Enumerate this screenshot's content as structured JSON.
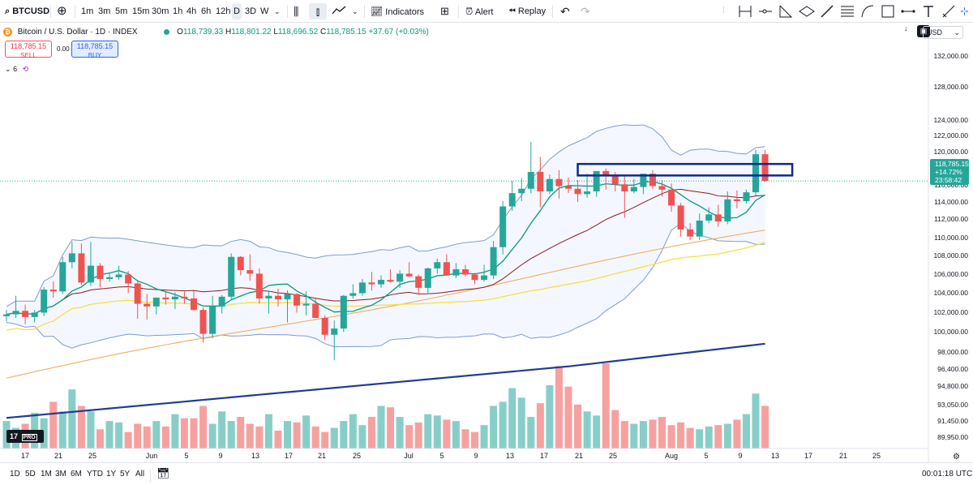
{
  "toolbar": {
    "symbol": "BTCUSD",
    "intervals": [
      "1m",
      "3m",
      "5m",
      "15m",
      "30m",
      "1h",
      "4h",
      "6h",
      "12h",
      "D",
      "3D",
      "W"
    ],
    "active_interval": "D",
    "indicators_label": "Indicators",
    "alert_label": "Alert",
    "replay_label": "Replay"
  },
  "legend": {
    "title": "Bitcoin / U.S. Dollar · 1D · INDEX",
    "o_label": "O",
    "o": "118,739.33",
    "h_label": "H",
    "h": "118,801.22",
    "l_label": "L",
    "l": "118,696.52",
    "c_label": "C",
    "c": "118,785.15",
    "change": "+37.67 (+0.03%)"
  },
  "trade": {
    "sell_price": "118,785.15",
    "sell_label": "SELL",
    "spread": "0.00",
    "buy_price": "118,785.15",
    "buy_label": "BUY"
  },
  "indicators_count": "6",
  "currency": "USD",
  "price_labels": [
    "132,000.00",
    "128,000.00",
    "124,000.00",
    "122,000.00",
    "120,000.00",
    "118,000.00",
    "116,000.00",
    "114,000.00",
    "112,000.00",
    "110,000.00",
    "108,000.00",
    "106,000.00",
    "104,000.00",
    "102,000.00",
    "100,000.00",
    "98,000.00",
    "96,400.00",
    "94,800.00",
    "93,050.00",
    "91,450.00",
    "89,950.00"
  ],
  "current_price_badge": {
    "price": "118,785.15",
    "change": "+14.72%",
    "countdown": "23:58:42"
  },
  "time_labels": [
    "17",
    "21",
    "25",
    "Jun",
    "5",
    "9",
    "13",
    "17",
    "21",
    "25",
    "Jul",
    "5",
    "9",
    "13",
    "17",
    "21",
    "25",
    "Aug",
    "5",
    "9",
    "13",
    "17",
    "21",
    "25"
  ],
  "bottom": {
    "ranges": [
      "1D",
      "5D",
      "1M",
      "3M",
      "6M",
      "YTD",
      "1Y",
      "5Y",
      "All"
    ],
    "clock": "00:01:18 UTC"
  },
  "logo_text": "PRO",
  "colors": {
    "up": "#26a69a",
    "down": "#ef5350",
    "bb": "#7e9ccf",
    "ma_long": "#1e3f8f",
    "ma_fast": "#089981",
    "ma_mid": "#8b1c1c",
    "ma_yellow": "#f5e042",
    "ma_orange": "#f0a64d",
    "rect": "#0d2a8a"
  },
  "chart_data": {
    "type": "candlestick",
    "x_start": "2025-05-13",
    "candles": [
      [
        103500,
        104200,
        102900,
        103700
      ],
      [
        103700,
        105800,
        103300,
        104100
      ],
      [
        104100,
        104800,
        102600,
        103400
      ],
      [
        103400,
        104200,
        102800,
        103900
      ],
      [
        103900,
        106800,
        103500,
        106500
      ],
      [
        106500,
        107400,
        105600,
        106300
      ],
      [
        106300,
        110200,
        106000,
        109600
      ],
      [
        109600,
        111900,
        108900,
        110600
      ],
      [
        110600,
        111700,
        107000,
        107300
      ],
      [
        107300,
        111900,
        106900,
        109200
      ],
      [
        109200,
        109500,
        106800,
        107700
      ],
      [
        107700,
        108400,
        107400,
        107900
      ],
      [
        107900,
        109200,
        107600,
        108200
      ],
      [
        108200,
        108600,
        106100,
        107200
      ],
      [
        107200,
        107600,
        103200,
        104900
      ],
      [
        104900,
        106000,
        103100,
        104600
      ],
      [
        104600,
        105500,
        103700,
        105600
      ],
      [
        105600,
        106300,
        104800,
        105400
      ],
      [
        105400,
        106200,
        104300,
        105700
      ],
      [
        105700,
        106300,
        104900,
        105500
      ],
      [
        105500,
        106500,
        104100,
        104200
      ],
      [
        104200,
        104500,
        100500,
        101500
      ],
      [
        101500,
        105800,
        101000,
        104600
      ],
      [
        104600,
        105900,
        103800,
        105700
      ],
      [
        105700,
        110600,
        105300,
        110200
      ],
      [
        110200,
        110300,
        108100,
        108700
      ],
      [
        108700,
        110500,
        107500,
        108300
      ],
      [
        108300,
        108900,
        104900,
        105500
      ],
      [
        105500,
        106400,
        103800,
        105800
      ],
      [
        105800,
        106600,
        104600,
        105400
      ],
      [
        105400,
        106400,
        102800,
        106000
      ],
      [
        106000,
        106100,
        103900,
        104700
      ],
      [
        104700,
        106300,
        103600,
        104900
      ],
      [
        104900,
        105600,
        103400,
        103300
      ],
      [
        103300,
        103600,
        100800,
        101400
      ],
      [
        101400,
        103000,
        98500,
        102100
      ],
      [
        102100,
        105900,
        101700,
        105800
      ],
      [
        105800,
        107100,
        105500,
        106100
      ],
      [
        106100,
        107700,
        105800,
        107300
      ],
      [
        107300,
        108500,
        106400,
        107100
      ],
      [
        107100,
        108100,
        106700,
        107600
      ],
      [
        107600,
        108800,
        107300,
        107400
      ],
      [
        107400,
        108700,
        106700,
        108300
      ],
      [
        108300,
        109600,
        107900,
        108000
      ],
      [
        108000,
        108200,
        105900,
        106700
      ],
      [
        106700,
        109000,
        106000,
        108900
      ],
      [
        108900,
        110000,
        108300,
        109600
      ],
      [
        109600,
        110500,
        108500,
        108100
      ],
      [
        108100,
        109500,
        107800,
        108800
      ],
      [
        108800,
        109300,
        108000,
        108200
      ],
      [
        108200,
        108400,
        107100,
        107600
      ],
      [
        107600,
        109300,
        107400,
        108100
      ],
      [
        108100,
        112000,
        107700,
        111300
      ],
      [
        111300,
        116500,
        110500,
        115900
      ],
      [
        115900,
        118800,
        115400,
        117400
      ],
      [
        117400,
        119100,
        116500,
        117900
      ],
      [
        117900,
        123200,
        117400,
        119800
      ],
      [
        119800,
        121500,
        115800,
        117600
      ],
      [
        117600,
        119500,
        117300,
        119000
      ],
      [
        119000,
        120000,
        116800,
        118200
      ],
      [
        118200,
        119200,
        117400,
        117900
      ],
      [
        117900,
        118900,
        116400,
        117300
      ],
      [
        117300,
        119600,
        116900,
        117600
      ],
      [
        117600,
        119700,
        117000,
        119900
      ],
      [
        119900,
        120200,
        117800,
        119300
      ],
      [
        119300,
        119800,
        117600,
        118400
      ],
      [
        118400,
        119400,
        114600,
        117600
      ],
      [
        117600,
        119000,
        117400,
        118100
      ],
      [
        118100,
        119300,
        117300,
        119600
      ],
      [
        119600,
        120000,
        117900,
        118200
      ],
      [
        118200,
        118900,
        117000,
        117800
      ],
      [
        117800,
        118500,
        115300,
        116000
      ],
      [
        116000,
        116300,
        112500,
        113300
      ],
      [
        113300,
        114000,
        112100,
        112500
      ],
      [
        112500,
        115100,
        112100,
        114300
      ],
      [
        114300,
        115800,
        114000,
        115000
      ],
      [
        115000,
        116100,
        113600,
        114200
      ],
      [
        114200,
        117600,
        113900,
        116700
      ],
      [
        116700,
        117700,
        115700,
        116500
      ],
      [
        116500,
        117800,
        116200,
        117500
      ],
      [
        117500,
        122300,
        117100,
        121800
      ],
      [
        121800,
        122300,
        118700,
        118785
      ]
    ],
    "volumes": [
      200,
      150,
      180,
      260,
      220,
      340,
      270,
      430,
      310,
      270,
      140,
      200,
      190,
      120,
      180,
      160,
      200,
      160,
      250,
      220,
      220,
      310,
      180,
      270,
      200,
      230,
      180,
      160,
      250,
      130,
      200,
      190,
      240,
      160,
      120,
      150,
      200,
      250,
      170,
      230,
      310,
      300,
      230,
      170,
      190,
      250,
      240,
      210,
      200,
      140,
      120,
      170,
      310,
      340,
      440,
      370,
      230,
      330,
      460,
      600,
      450,
      320,
      270,
      240,
      620,
      280,
      200,
      180,
      200,
      210,
      230,
      170,
      190,
      150,
      140,
      160,
      170,
      180,
      210,
      250,
      400,
      310
    ],
    "volume_scale": {
      "labels": [
        "98,000.00",
        "96,400.00",
        "94,800.00",
        "93,050.00",
        "91,450.00",
        "89,950.00"
      ]
    },
    "ylim": [
      89000,
      133000
    ],
    "highlight_zone": {
      "x_from_index": 61,
      "x_to_index": 82,
      "price_low": 119400,
      "price_high": 120700
    },
    "last_price": 118785.15
  }
}
